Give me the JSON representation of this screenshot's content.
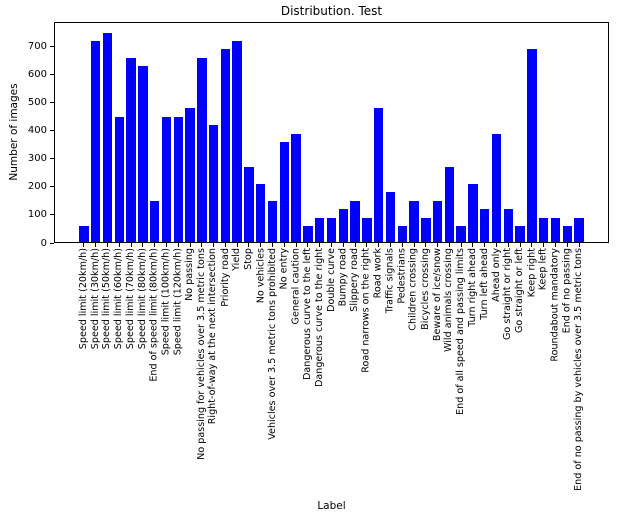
{
  "figure": {
    "background": "#ffffff",
    "spine_color": "#000000"
  },
  "chart_data": {
    "type": "bar",
    "title": "Distribution. Test",
    "xlabel": "Label",
    "ylabel": "Number of images",
    "bar_color": "#0000ff",
    "grid": false,
    "legend": null,
    "ylim": [
      0,
      787.5
    ],
    "yticks": [
      0,
      100,
      200,
      300,
      400,
      500,
      600,
      700
    ],
    "categories": [
      "Speed limit (20km/h)",
      "Speed limit (30km/h)",
      "Speed limit (50km/h)",
      "Speed limit (60km/h)",
      "Speed limit (70km/h)",
      "Speed limit (80km/h)",
      "End of speed limit (80km/h)",
      "Speed limit (100km/h)",
      "Speed limit (120km/h)",
      "No passing",
      "No passing for vehicles over 3.5 metric tons",
      "Right-of-way at the next intersection",
      "Priority road",
      "Yield",
      "Stop",
      "No vehicles",
      "Vehicles over 3.5 metric tons prohibited",
      "No entry",
      "General caution",
      "Dangerous curve to the left",
      "Dangerous curve to the right",
      "Double curve",
      "Bumpy road",
      "Slippery road",
      "Road narrows on the right",
      "Road work",
      "Traffic signals",
      "Pedestrians",
      "Children crossing",
      "Bicycles crossing",
      "Beware of ice/snow",
      "Wild animals crossing",
      "End of all speed and passing limits",
      "Turn right ahead",
      "Turn left ahead",
      "Ahead only",
      "Go straight or right",
      "Go straight or left",
      "Keep right",
      "Keep left",
      "Roundabout mandatory",
      "End of no passing",
      "End of no passing by vehicles over 3.5 metric tons"
    ],
    "values": [
      60,
      720,
      750,
      450,
      660,
      630,
      150,
      450,
      450,
      480,
      660,
      420,
      690,
      720,
      270,
      210,
      150,
      360,
      390,
      60,
      90,
      90,
      120,
      150,
      90,
      480,
      180,
      60,
      150,
      90,
      150,
      270,
      60,
      210,
      120,
      390,
      120,
      60,
      690,
      90,
      90,
      60,
      90
    ]
  }
}
